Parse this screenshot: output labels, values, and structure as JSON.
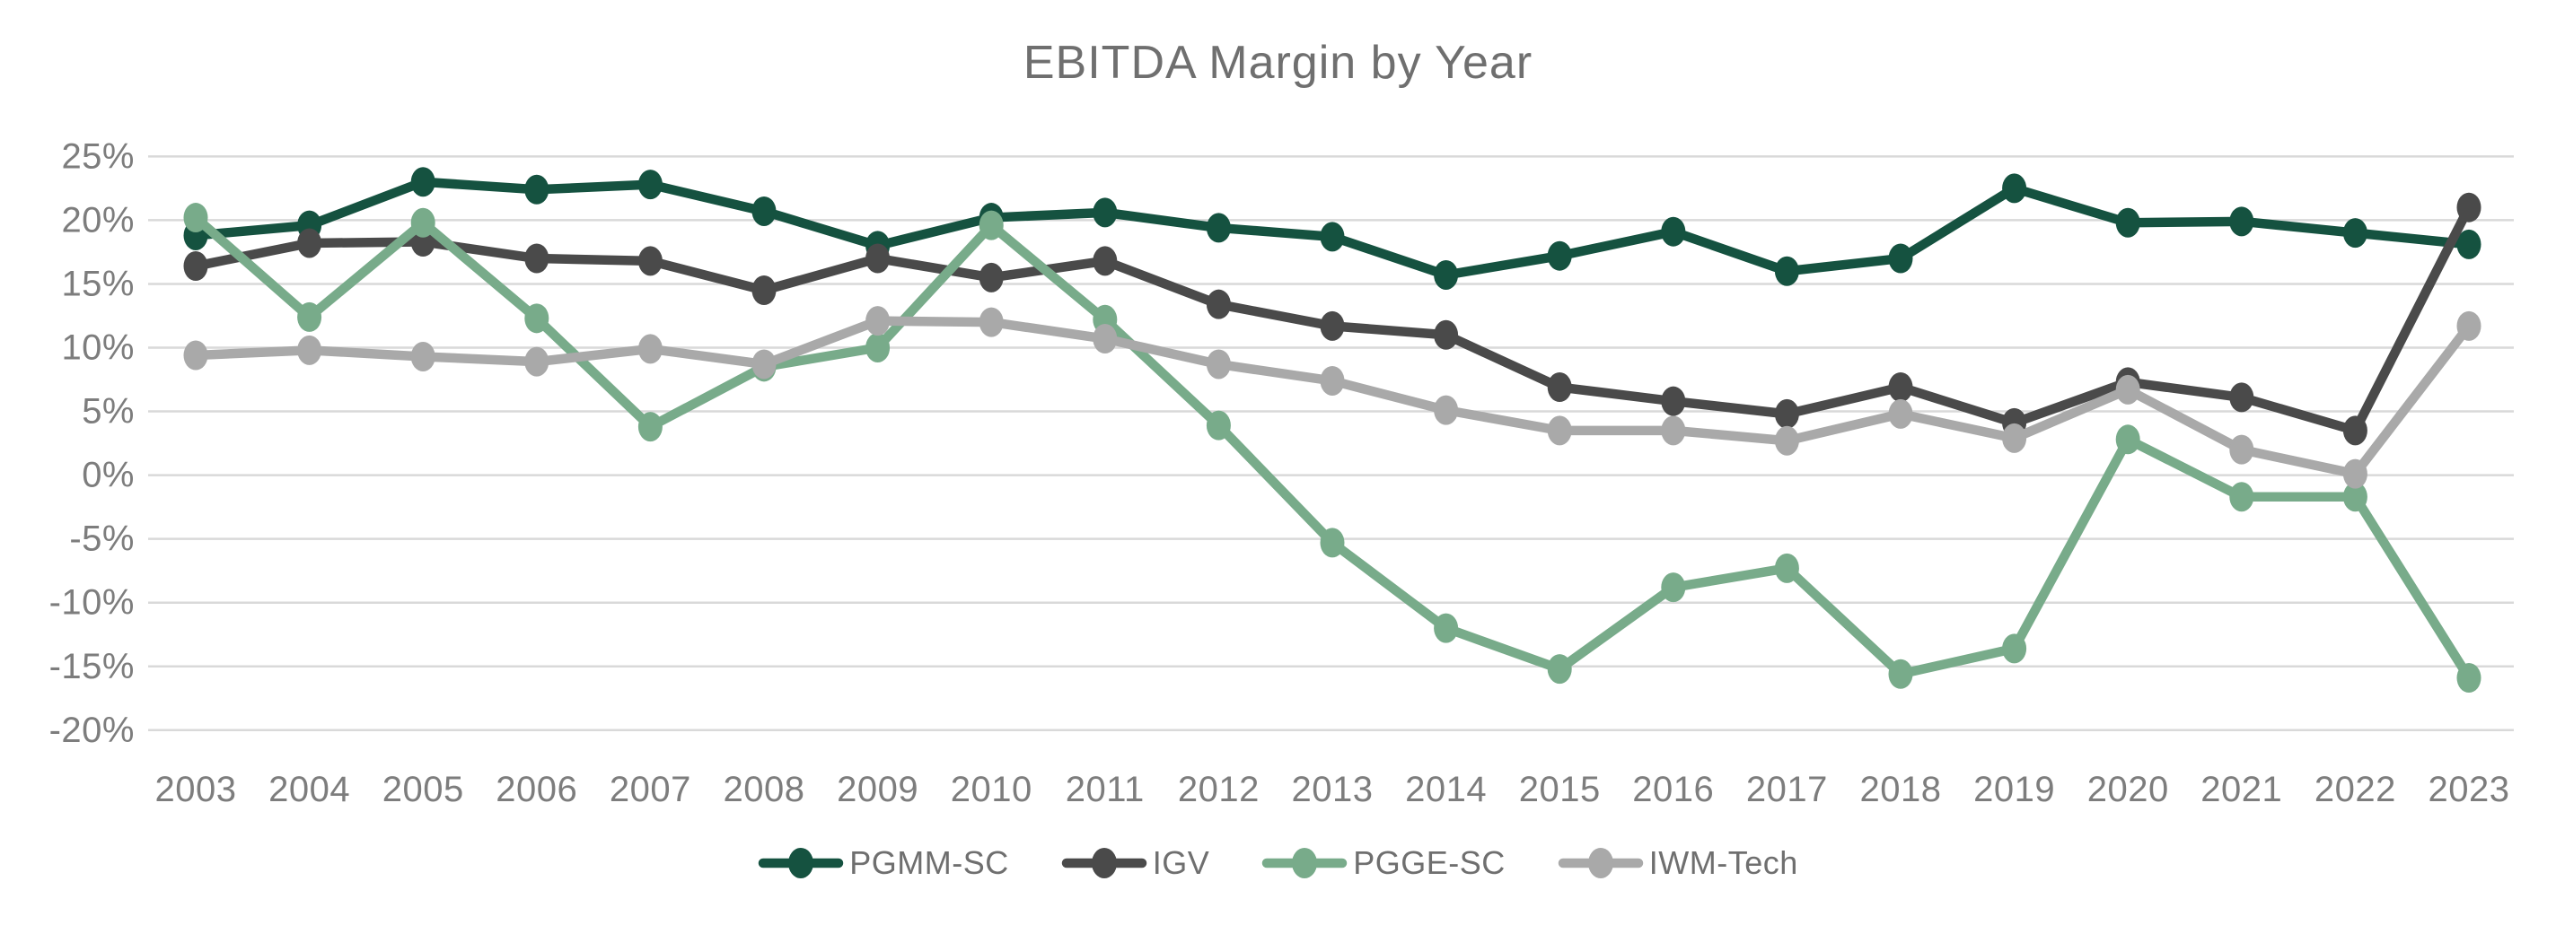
{
  "page": {
    "background": "#ffffff"
  },
  "chart_data": {
    "type": "line",
    "title": "EBITDA Margin by Year",
    "xlabel": "",
    "ylabel": "",
    "categories": [
      "2003",
      "2004",
      "2005",
      "2006",
      "2007",
      "2008",
      "2009",
      "2010",
      "2011",
      "2012",
      "2013",
      "2014",
      "2015",
      "2016",
      "2017",
      "2018",
      "2019",
      "2020",
      "2021",
      "2022",
      "2023"
    ],
    "y_tick_labels": [
      "25%",
      "20%",
      "15%",
      "10%",
      "5%",
      "0%",
      "-5%",
      "-10%",
      "-15%",
      "-20%"
    ],
    "y_tick_values": [
      25,
      20,
      15,
      10,
      5,
      0,
      -5,
      -10,
      -15,
      -20
    ],
    "ylim": [
      -22,
      27
    ],
    "grid": true,
    "legend_position": "bottom",
    "colors": {
      "grid": "#d9d9d9",
      "title": "#6f6f6f",
      "tick_labels": "#7d7d7d",
      "legend_text": "#6f6f6f",
      "background": "#ffffff"
    },
    "series": [
      {
        "name": "PGMM-SC",
        "color": "#155240",
        "values": [
          18.8,
          19.6,
          23.0,
          22.4,
          22.8,
          20.7,
          18.0,
          20.2,
          20.6,
          19.4,
          18.7,
          15.7,
          17.2,
          19.1,
          16.0,
          17.0,
          22.5,
          19.8,
          19.9,
          19.0,
          18.1
        ]
      },
      {
        "name": "IGV",
        "color": "#4a4a4a",
        "values": [
          16.4,
          18.2,
          18.3,
          17.0,
          16.8,
          14.5,
          17.0,
          15.5,
          16.8,
          13.4,
          11.7,
          11.0,
          6.9,
          5.8,
          4.8,
          6.9,
          4.1,
          7.3,
          6.1,
          3.5,
          21.0
        ]
      },
      {
        "name": "PGGE-SC",
        "color": "#78ab8a",
        "values": [
          20.2,
          12.4,
          19.8,
          12.3,
          3.8,
          8.5,
          10.0,
          19.6,
          12.2,
          3.9,
          -5.3,
          -12.0,
          -15.2,
          -8.8,
          -7.3,
          -15.6,
          -13.6,
          2.8,
          -1.7,
          -1.7,
          -15.9
        ]
      },
      {
        "name": "IWM-Tech",
        "color": "#a9a9a9",
        "values": [
          9.4,
          9.8,
          9.3,
          8.9,
          9.9,
          8.7,
          12.1,
          12.0,
          10.7,
          8.7,
          7.4,
          5.1,
          3.5,
          3.5,
          2.7,
          4.8,
          2.9,
          6.7,
          2.0,
          0.1,
          11.7
        ]
      }
    ]
  }
}
